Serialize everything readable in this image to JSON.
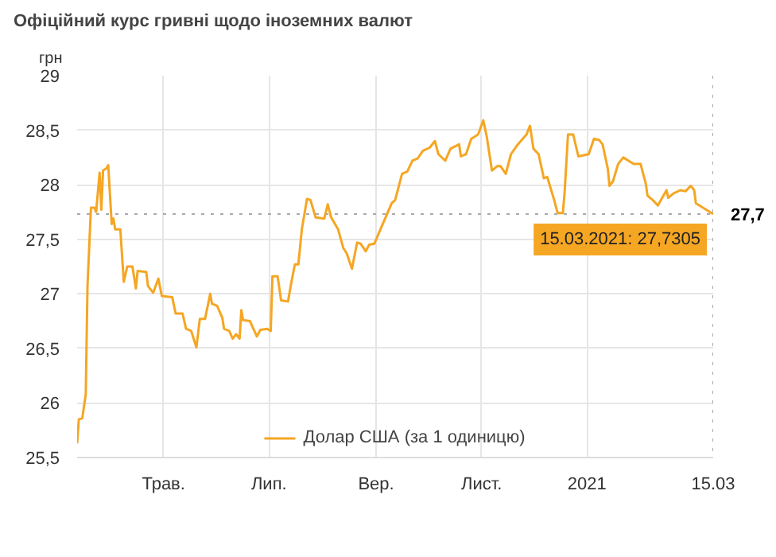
{
  "chart_data": {
    "type": "line",
    "title": "Офіційний курс гривні щодо іноземних валют",
    "ylabel": "грн",
    "x": [
      "2020-03-12",
      "2020-03-13",
      "2020-03-15",
      "2020-03-17",
      "2020-03-18",
      "2020-03-20",
      "2020-03-22",
      "2020-03-23",
      "2020-03-25",
      "2020-03-26",
      "2020-03-27",
      "2020-03-29",
      "2020-03-30",
      "2020-04-01",
      "2020-04-02",
      "2020-04-03",
      "2020-04-06",
      "2020-04-08",
      "2020-04-10",
      "2020-04-13",
      "2020-04-15",
      "2020-04-16",
      "2020-04-21",
      "2020-04-22",
      "2020-04-25",
      "2020-04-28",
      "2020-04-30",
      "2020-05-06",
      "2020-05-08",
      "2020-05-12",
      "2020-05-14",
      "2020-05-17",
      "2020-05-20",
      "2020-05-22",
      "2020-05-25",
      "2020-05-28",
      "2020-05-29",
      "2020-06-01",
      "2020-06-04",
      "2020-06-05",
      "2020-06-08",
      "2020-06-10",
      "2020-06-12",
      "2020-06-14",
      "2020-06-15",
      "2020-06-16",
      "2020-06-20",
      "2020-06-24",
      "2020-06-26",
      "2020-06-30",
      "2020-07-02",
      "2020-07-03",
      "2020-07-06",
      "2020-07-08",
      "2020-07-12",
      "2020-07-14",
      "2020-07-16",
      "2020-07-18",
      "2020-07-20",
      "2020-07-23",
      "2020-07-25",
      "2020-07-28",
      "2020-08-02",
      "2020-08-04",
      "2020-08-06",
      "2020-08-10",
      "2020-08-13",
      "2020-08-15",
      "2020-08-18",
      "2020-08-21",
      "2020-08-23",
      "2020-08-26",
      "2020-08-28",
      "2020-08-31",
      "2020-09-04",
      "2020-09-07",
      "2020-09-10",
      "2020-09-12",
      "2020-09-16",
      "2020-09-19",
      "2020-09-22",
      "2020-09-25",
      "2020-09-28",
      "2020-10-02",
      "2020-10-05",
      "2020-10-07",
      "2020-10-11",
      "2020-10-14",
      "2020-10-19",
      "2020-10-20",
      "2020-10-23",
      "2020-10-26",
      "2020-10-30",
      "2020-11-02",
      "2020-11-04",
      "2020-11-07",
      "2020-11-10",
      "2020-11-12",
      "2020-11-15",
      "2020-11-18",
      "2020-11-22",
      "2020-11-27",
      "2020-11-29",
      "2020-12-01",
      "2020-12-04",
      "2020-12-07",
      "2020-12-09",
      "2020-12-13",
      "2020-12-15",
      "2020-12-18",
      "2020-12-19",
      "2020-12-21",
      "2020-12-24",
      "2020-12-27",
      "2021-01-02",
      "2021-01-05",
      "2021-01-08",
      "2021-01-10",
      "2021-01-13",
      "2021-01-14",
      "2021-01-16",
      "2021-01-19",
      "2021-01-22",
      "2021-01-25",
      "2021-01-28",
      "2021-02-01",
      "2021-02-04",
      "2021-02-05",
      "2021-02-08",
      "2021-02-11",
      "2021-02-16",
      "2021-02-17",
      "2021-02-20",
      "2021-02-24",
      "2021-02-27",
      "2021-03-02",
      "2021-03-04",
      "2021-03-05",
      "2021-03-15"
    ],
    "series": [
      {
        "name": "Долар США (за 1 одиницю)",
        "color": "#f5a623",
        "values": [
          25.63,
          25.85,
          25.86,
          26.08,
          27.07,
          27.79,
          27.79,
          27.75,
          28.11,
          27.77,
          28.13,
          28.15,
          28.18,
          27.64,
          27.69,
          27.59,
          27.59,
          27.11,
          27.25,
          27.25,
          27.05,
          27.21,
          27.2,
          27.07,
          27.01,
          27.14,
          26.98,
          26.97,
          26.82,
          26.82,
          26.68,
          26.66,
          26.51,
          26.77,
          26.77,
          27.0,
          26.91,
          26.89,
          26.78,
          26.68,
          26.66,
          26.59,
          26.63,
          26.59,
          26.85,
          26.76,
          26.75,
          26.61,
          26.67,
          26.68,
          26.66,
          27.16,
          27.16,
          26.94,
          26.93,
          27.11,
          27.27,
          27.27,
          27.59,
          27.87,
          27.86,
          27.7,
          27.69,
          27.82,
          27.7,
          27.59,
          27.42,
          27.37,
          27.23,
          27.47,
          27.46,
          27.39,
          27.45,
          27.46,
          27.61,
          27.72,
          27.83,
          27.86,
          28.1,
          28.12,
          28.22,
          28.24,
          28.31,
          28.34,
          28.4,
          28.28,
          28.22,
          28.33,
          28.37,
          28.26,
          28.28,
          28.42,
          28.46,
          28.59,
          28.44,
          28.13,
          28.17,
          28.17,
          28.1,
          28.28,
          28.37,
          28.46,
          28.54,
          28.33,
          28.28,
          28.06,
          28.07,
          27.86,
          27.74,
          27.74,
          27.92,
          28.46,
          28.46,
          28.26,
          28.28,
          28.42,
          28.41,
          28.37,
          28.15,
          27.99,
          28.03,
          28.19,
          28.25,
          28.22,
          28.19,
          28.19,
          28.01,
          27.9,
          27.86,
          27.81,
          27.95,
          27.88,
          27.92,
          27.95,
          27.94,
          27.99,
          27.95,
          27.83,
          27.7305
        ]
      }
    ],
    "xlim": [
      "2020-03-12",
      "2021-03-15"
    ],
    "xticks": [
      {
        "value": "2020-05-01",
        "label": "Трав."
      },
      {
        "value": "2020-07-01",
        "label": "Лип."
      },
      {
        "value": "2020-09-01",
        "label": "Вер."
      },
      {
        "value": "2020-11-01",
        "label": "Лист."
      },
      {
        "value": "2021-01-01",
        "label": "2021"
      },
      {
        "value": "2021-03-15",
        "label": "15.03"
      }
    ],
    "ylim": [
      25.5,
      29
    ],
    "yticks": [
      {
        "value": 25.5,
        "label": "25,5"
      },
      26,
      {
        "value": 26.5,
        "label": "26,5"
      },
      27,
      {
        "value": 27.5,
        "label": "27,5"
      },
      28,
      {
        "value": 28.5,
        "label": "28,5"
      },
      29
    ],
    "ref_lines": [
      {
        "axis": "y",
        "value": 27.7305,
        "label": "27,7",
        "line_style": "dotted",
        "color": "#aaaaaa"
      },
      {
        "axis": "x",
        "value": "2021-03-15",
        "line_style": "dotted",
        "color": "#aaaaaa"
      }
    ],
    "annotations": [
      {
        "text": "15.03.2021: 27,7305",
        "x": "2021-03-15",
        "y": 27.7305
      }
    ],
    "grid": true,
    "legend": "bottom",
    "line_style": "solid",
    "marker": "none"
  }
}
